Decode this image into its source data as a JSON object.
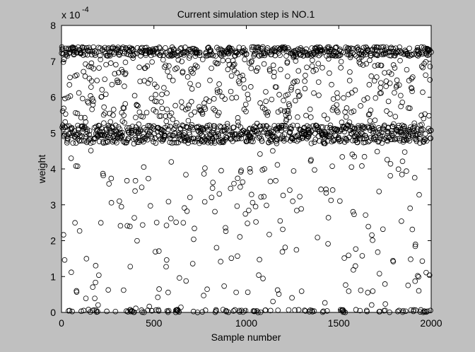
{
  "chart_data": {
    "type": "scatter",
    "title": "Current simulation step is NO.1",
    "xlabel": "Sample number",
    "ylabel": "weight",
    "y_exponent_base": "x 10",
    "y_exponent_power": "-4",
    "xlim": [
      0,
      2000
    ],
    "ylim": [
      0,
      8
    ],
    "xticks": [
      0,
      500,
      1000,
      1500,
      2000
    ],
    "yticks": [
      0,
      1,
      2,
      3,
      4,
      5,
      6,
      7,
      8
    ],
    "marker": "open-circle",
    "marker_color": "#000000",
    "plot_background": "#ffffff",
    "figure_background": "#c0c0c0",
    "grid": false,
    "legend": "none",
    "sample_count": 2000,
    "distribution_note": "dense band of weights between about 4.7 and 7.4 (x 10^-4), concentrated near 4.8-5.2 and near 7.2-7.4; sparse points between 0 and 4.6; many points at 0"
  }
}
